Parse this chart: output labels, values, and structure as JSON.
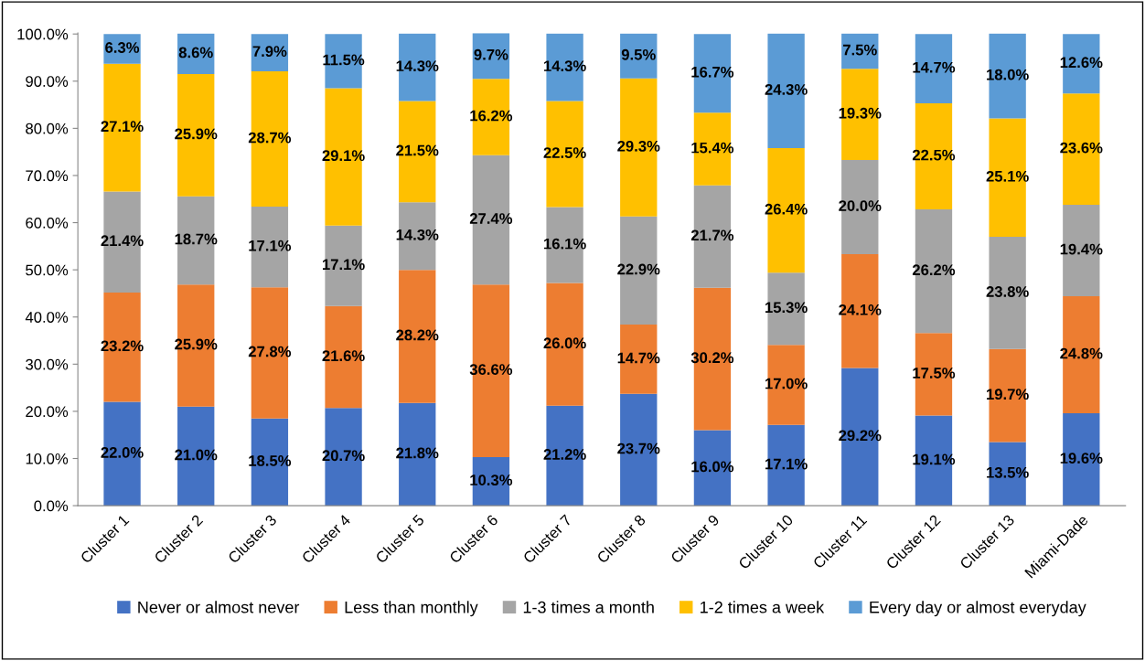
{
  "chart_data": {
    "type": "bar",
    "stacked": true,
    "categories": [
      "Cluster 1",
      "Cluster 2",
      "Cluster 3",
      "Cluster 4",
      "Cluster 5",
      "Cluster 6",
      "Cluster 7",
      "Cluster 8",
      "Cluster 9",
      "Cluster 10",
      "Cluster 11",
      "Cluster 12",
      "Cluster 13",
      "Miami-Dade"
    ],
    "series": [
      {
        "name": "Never or almost never",
        "color": "#4472c4",
        "values": [
          22.0,
          21.0,
          18.5,
          20.7,
          21.8,
          10.3,
          21.2,
          23.7,
          16.0,
          17.1,
          29.2,
          19.1,
          13.5,
          19.6
        ],
        "value_labels": [
          "22.0%",
          "21.0%",
          "18.5%",
          "20.7%",
          "21.8%",
          "10.3%",
          "21.2%",
          "23.7%",
          "16.0%",
          "17.1%",
          "29.2%",
          "19.1%",
          "13.5%",
          "19.6%"
        ]
      },
      {
        "name": "Less than monthly",
        "color": "#ed7d31",
        "values": [
          23.2,
          25.9,
          27.8,
          21.6,
          28.2,
          36.6,
          26.0,
          14.7,
          30.2,
          17.0,
          24.1,
          17.5,
          19.7,
          24.8
        ],
        "value_labels": [
          "23.2%",
          "25.9%",
          "27.8%",
          "21.6%",
          "28.2%",
          "36.6%",
          "26.0%",
          "14.7%",
          "30.2%",
          "17.0%",
          "24.1%",
          "17.5%",
          "19.7%",
          "24.8%"
        ]
      },
      {
        "name": "1-3 times a month",
        "color": "#a5a5a5",
        "values": [
          21.4,
          18.7,
          17.1,
          17.1,
          14.3,
          27.4,
          16.1,
          22.9,
          21.7,
          15.3,
          20.0,
          26.2,
          23.8,
          19.4
        ],
        "value_labels": [
          "21.4%",
          "18.7%",
          "17.1%",
          "17.1%",
          "14.3%",
          "27.4%",
          "16.1%",
          "22.9%",
          "21.7%",
          "15.3%",
          "20.0%",
          "26.2%",
          "23.8%",
          "19.4%"
        ]
      },
      {
        "name": "1-2 times a week",
        "color": "#ffc000",
        "values": [
          27.1,
          25.9,
          28.7,
          29.1,
          21.5,
          16.2,
          22.5,
          29.3,
          15.4,
          26.4,
          19.3,
          22.5,
          25.1,
          23.6
        ],
        "value_labels": [
          "27.1%",
          "25.9%",
          "28.7%",
          "29.1%",
          "21.5%",
          "16.2%",
          "22.5%",
          "29.3%",
          "15.4%",
          "26.4%",
          "19.3%",
          "22.5%",
          "25.1%",
          "23.6%"
        ]
      },
      {
        "name": "Every day or almost everyday",
        "color": "#5b9bd5",
        "values": [
          6.3,
          8.6,
          7.9,
          11.5,
          14.3,
          9.7,
          14.3,
          9.5,
          16.7,
          24.3,
          7.5,
          14.7,
          18.0,
          12.6
        ],
        "value_labels": [
          "6.3%",
          "8.6%",
          "7.9%",
          "11.5%",
          "14.3%",
          "9.7%",
          "14.3%",
          "9.5%",
          "16.7%",
          "24.3%",
          "7.5%",
          "14.7%",
          "18.0%",
          "12.6%"
        ]
      }
    ],
    "ylim": [
      0,
      100.2
    ],
    "yticks": [
      {
        "value": 0,
        "label": "0.0%"
      },
      {
        "value": 10,
        "label": "10.0%"
      },
      {
        "value": 20,
        "label": "20.0%"
      },
      {
        "value": 30,
        "label": "30.0%"
      },
      {
        "value": 40,
        "label": "40.0%"
      },
      {
        "value": 50,
        "label": "50.0%"
      },
      {
        "value": 60,
        "label": "60.0%"
      },
      {
        "value": 70,
        "label": "70.0%"
      },
      {
        "value": 80,
        "label": "80.0%"
      },
      {
        "value": 90,
        "label": "90.0%"
      },
      {
        "value": 100,
        "label": "100.0%"
      }
    ],
    "grid": false,
    "legend": "bottom"
  }
}
